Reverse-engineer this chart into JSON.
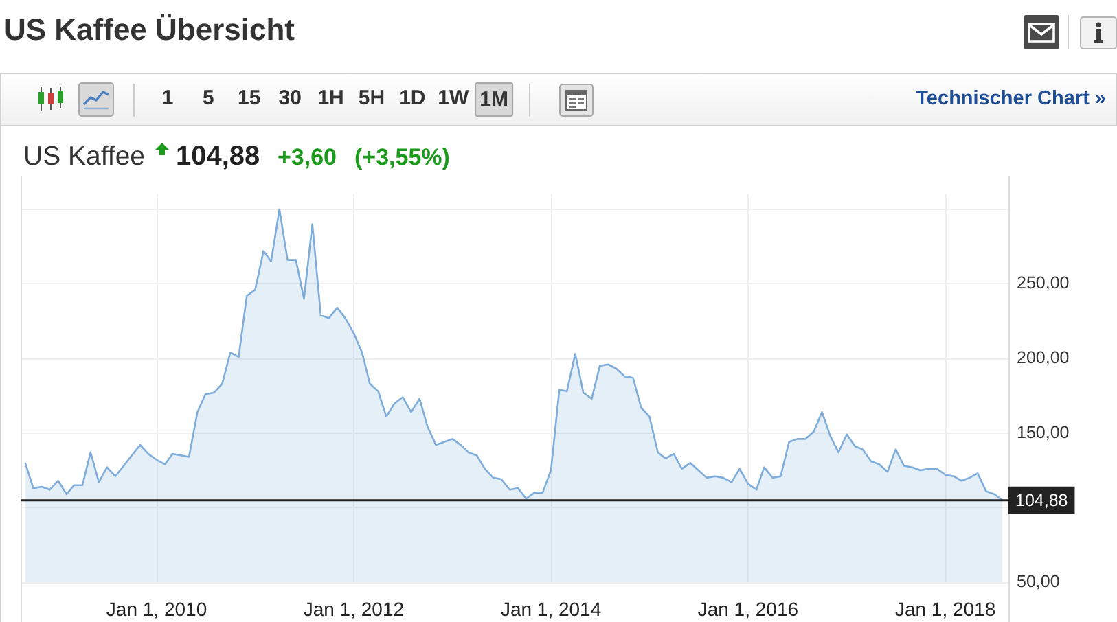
{
  "chart_data": {
    "type": "area",
    "title": "US Kaffee Übersicht",
    "subtitle": "US Kaffee",
    "annotations": [
      "104,88",
      "+3,60",
      "(+3,55%)",
      "1 5 15 30 1H 5H 1D 1W 1M",
      "Technischer Chart »"
    ],
    "x": [
      "2008-09",
      "2008-10",
      "2008-11",
      "2008-12",
      "2009-01",
      "2009-02",
      "2009-03",
      "2009-04",
      "2009-05",
      "2009-06",
      "2009-07",
      "2009-08",
      "2009-09",
      "2009-10",
      "2009-11",
      "2009-12",
      "2010-01",
      "2010-02",
      "2010-03",
      "2010-04",
      "2010-05",
      "2010-06",
      "2010-07",
      "2010-08",
      "2010-09",
      "2010-10",
      "2010-11",
      "2010-12",
      "2011-01",
      "2011-02",
      "2011-03",
      "2011-04",
      "2011-05",
      "2011-06",
      "2011-07",
      "2011-08",
      "2011-09",
      "2011-10",
      "2011-11",
      "2011-12",
      "2012-01",
      "2012-02",
      "2012-03",
      "2012-04",
      "2012-05",
      "2012-06",
      "2012-07",
      "2012-08",
      "2012-09",
      "2012-10",
      "2012-11",
      "2012-12",
      "2013-01",
      "2013-02",
      "2013-03",
      "2013-04",
      "2013-05",
      "2013-06",
      "2013-07",
      "2013-08",
      "2013-09",
      "2013-10",
      "2013-11",
      "2013-12",
      "2014-01",
      "2014-02",
      "2014-03",
      "2014-04",
      "2014-05",
      "2014-06",
      "2014-07",
      "2014-08",
      "2014-09",
      "2014-10",
      "2014-11",
      "2014-12",
      "2015-01",
      "2015-02",
      "2015-03",
      "2015-04",
      "2015-05",
      "2015-06",
      "2015-07",
      "2015-08",
      "2015-09",
      "2015-10",
      "2015-11",
      "2015-12",
      "2016-01",
      "2016-02",
      "2016-03",
      "2016-04",
      "2016-05",
      "2016-06",
      "2016-07",
      "2016-08",
      "2016-09",
      "2016-10",
      "2016-11",
      "2016-12",
      "2017-01",
      "2017-02",
      "2017-03",
      "2017-04",
      "2017-05",
      "2017-06",
      "2017-07",
      "2017-08",
      "2017-09",
      "2017-10",
      "2017-11",
      "2017-12",
      "2018-01",
      "2018-02",
      "2018-03",
      "2018-04",
      "2018-05",
      "2018-06",
      "2018-07",
      "2018-08"
    ],
    "values": [
      130,
      113,
      114,
      112,
      118,
      109,
      115,
      115,
      137,
      117,
      127,
      121,
      128,
      135,
      142,
      136,
      132,
      129,
      136,
      135,
      134,
      164,
      176,
      177,
      183,
      204,
      201,
      242,
      246,
      272,
      265,
      300,
      266,
      266,
      240,
      290,
      229,
      227,
      234,
      227,
      217,
      204,
      183,
      178,
      161,
      170,
      174,
      164,
      173,
      154,
      142,
      144,
      146,
      142,
      137,
      135,
      126,
      120,
      119,
      112,
      113,
      106,
      110,
      110,
      125,
      179,
      178,
      203,
      177,
      173,
      195,
      196,
      193,
      188,
      187,
      167,
      161,
      137,
      133,
      136,
      126,
      130,
      125,
      120,
      121,
      120,
      117,
      126,
      116,
      112,
      127,
      120,
      121,
      144,
      146,
      146,
      151,
      164,
      148,
      137,
      149,
      141,
      139,
      131,
      129,
      124,
      139,
      128,
      127,
      125,
      126,
      126,
      122,
      121,
      118,
      120,
      123,
      111,
      109,
      105
    ],
    "color": "#7eaddc",
    "xlim": [
      "2008-08-15",
      "2018-08-23"
    ],
    "xticks": [
      {
        "value": "2010-01-01",
        "label": "Jan 1, 2010"
      },
      {
        "value": "2012-01-01",
        "label": "Jan 1, 2012"
      },
      {
        "value": "2014-01-01",
        "label": "Jan 1, 2014"
      },
      {
        "value": "2016-01-01",
        "label": "Jan 1, 2016"
      },
      {
        "value": "2018-01-01",
        "label": "Jan 1, 2018"
      }
    ],
    "ylim": [
      50,
      310
    ],
    "yticks": [
      {
        "value": 50,
        "label": "50,00"
      },
      {
        "value": 100,
        "label": null
      },
      {
        "value": 150,
        "label": "150,00"
      },
      {
        "value": 200,
        "label": "200,00"
      },
      {
        "value": 250,
        "label": "250,00"
      },
      {
        "value": 300,
        "label": null
      }
    ],
    "ref_lines": [
      {
        "axis": "y",
        "value": 104.88,
        "label": "104,88",
        "color": "#222222"
      }
    ],
    "grid": true,
    "marker": "none"
  }
}
